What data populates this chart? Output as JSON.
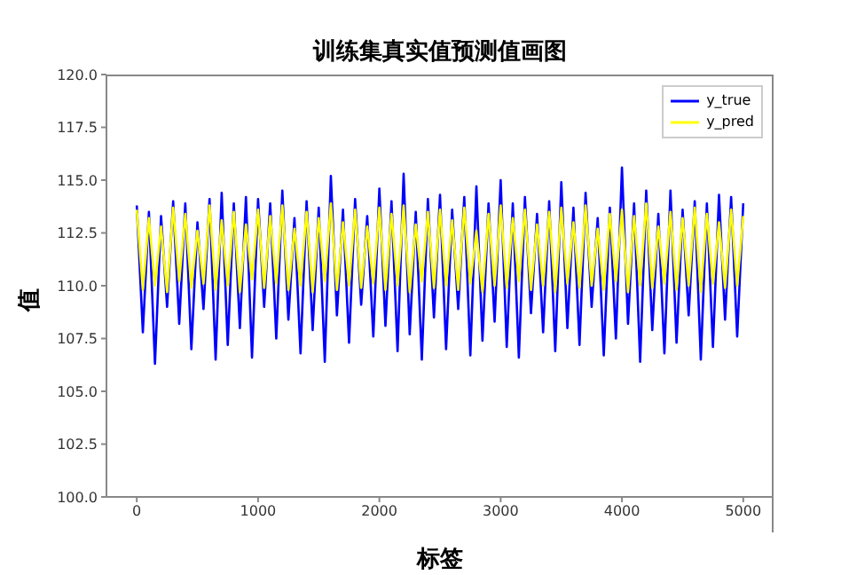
{
  "chart_data": {
    "type": "line",
    "title": "训练集真实值预测值画图",
    "xlabel": "标签",
    "ylabel": "值",
    "x": [
      0,
      50,
      100,
      150,
      200,
      250,
      300,
      350,
      400,
      450,
      500,
      550,
      600,
      650,
      700,
      750,
      800,
      850,
      900,
      950,
      1000,
      1050,
      1100,
      1150,
      1200,
      1250,
      1300,
      1350,
      1400,
      1450,
      1500,
      1550,
      1600,
      1650,
      1700,
      1750,
      1800,
      1850,
      1900,
      1950,
      2000,
      2050,
      2100,
      2150,
      2200,
      2250,
      2300,
      2350,
      2400,
      2450,
      2500,
      2550,
      2600,
      2650,
      2700,
      2750,
      2800,
      2850,
      2900,
      2950,
      3000,
      3050,
      3100,
      3150,
      3200,
      3250,
      3300,
      3350,
      3400,
      3450,
      3500,
      3550,
      3600,
      3650,
      3700,
      3750,
      3800,
      3850,
      3900,
      3950,
      4000,
      4050,
      4100,
      4150,
      4200,
      4250,
      4300,
      4350,
      4400,
      4450,
      4500,
      4550,
      4600,
      4650,
      4700,
      4750,
      4800,
      4850,
      4900,
      4950,
      5000
    ],
    "series": [
      {
        "name": "y_true",
        "color": "#0000ff",
        "values": [
          113.8,
          107.8,
          113.5,
          106.3,
          113.3,
          109.0,
          114.0,
          108.2,
          113.9,
          107.0,
          113.0,
          108.9,
          114.1,
          106.5,
          114.4,
          107.2,
          113.9,
          108.0,
          114.2,
          106.6,
          114.1,
          109.0,
          113.9,
          107.5,
          114.5,
          108.4,
          113.2,
          106.8,
          114.0,
          107.9,
          113.7,
          106.4,
          115.2,
          108.6,
          113.6,
          107.3,
          114.1,
          109.1,
          113.3,
          107.6,
          114.6,
          108.1,
          114.0,
          106.9,
          115.3,
          107.7,
          113.5,
          106.5,
          114.1,
          108.5,
          114.3,
          107.0,
          113.6,
          108.9,
          114.2,
          106.7,
          114.7,
          107.4,
          113.9,
          108.3,
          115.0,
          107.1,
          113.9,
          106.6,
          114.2,
          108.7,
          113.4,
          107.8,
          114.0,
          106.9,
          114.9,
          108.0,
          113.7,
          107.2,
          114.4,
          109.0,
          113.2,
          106.7,
          113.7,
          107.5,
          115.6,
          108.2,
          113.9,
          106.4,
          114.5,
          107.9,
          113.4,
          106.8,
          114.5,
          107.3,
          113.6,
          108.6,
          114.0,
          106.5,
          113.9,
          107.1,
          114.3,
          108.4,
          114.2,
          107.6,
          113.9
        ]
      },
      {
        "name": "y_pred",
        "color": "#ffff00",
        "values": [
          113.6,
          109.8,
          113.2,
          110.0,
          112.8,
          109.7,
          113.7,
          110.2,
          113.4,
          109.9,
          112.6,
          110.1,
          113.8,
          109.8,
          113.1,
          110.0,
          113.5,
          109.7,
          112.9,
          110.3,
          113.6,
          109.9,
          113.3,
          110.1,
          113.8,
          109.8,
          112.7,
          110.0,
          113.5,
          109.7,
          113.2,
          110.2,
          113.9,
          109.8,
          113.0,
          110.0,
          113.6,
          109.9,
          112.8,
          110.1,
          113.7,
          109.8,
          113.4,
          110.0,
          113.8,
          109.7,
          112.9,
          110.2,
          113.5,
          109.9,
          113.6,
          110.0,
          113.1,
          109.8,
          113.7,
          110.1,
          112.6,
          109.7,
          113.4,
          110.0,
          113.8,
          109.9,
          113.2,
          110.2,
          113.6,
          109.8,
          112.9,
          110.0,
          113.5,
          109.7,
          113.7,
          110.1,
          113.0,
          109.9,
          113.8,
          110.0,
          112.7,
          109.8,
          113.4,
          110.2,
          113.6,
          109.7,
          113.3,
          110.0,
          113.9,
          109.9,
          112.8,
          110.1,
          113.5,
          109.8,
          113.2,
          110.0,
          113.7,
          109.7,
          113.4,
          110.1,
          113.0,
          109.9,
          113.6,
          110.0,
          113.3
        ]
      }
    ],
    "xlim": [
      -250,
      5250
    ],
    "xticks": [
      0,
      1000,
      2000,
      3000,
      4000,
      5000
    ],
    "ylim": [
      100,
      120
    ],
    "yticks": [
      {
        "value": 100,
        "label": "100.0"
      },
      {
        "value": 102.5,
        "label": "102.5"
      },
      {
        "value": 105,
        "label": "105.0"
      },
      {
        "value": 107.5,
        "label": "107.5"
      },
      {
        "value": 110,
        "label": "110.0"
      },
      {
        "value": 112.5,
        "label": "112.5"
      },
      {
        "value": 115,
        "label": "115.0"
      },
      {
        "value": 117.5,
        "label": "117.5"
      },
      {
        "value": 120,
        "label": "120.0"
      }
    ],
    "grid": false,
    "legend": "top right",
    "marker": "none",
    "line_style": "solid"
  }
}
